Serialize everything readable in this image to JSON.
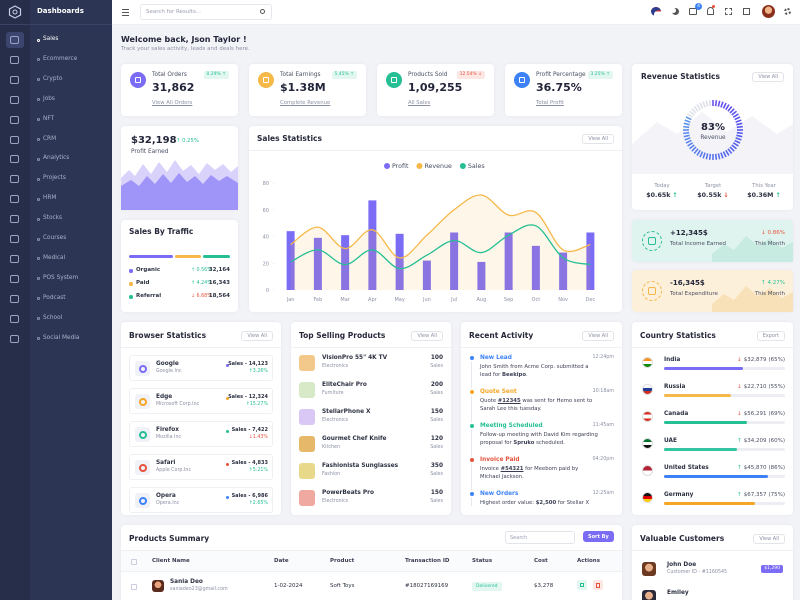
{
  "sidebar": {
    "brand": "Dashboards",
    "menu": [
      "Sales",
      "Ecommerce",
      "Crypto",
      "Jobs",
      "NFT",
      "CRM",
      "Analytics",
      "Projects",
      "HRM",
      "Stocks",
      "Courses",
      "Medical",
      "POS System",
      "Podcast",
      "School",
      "Social Media"
    ]
  },
  "header": {
    "search_placeholder": "Search for Results...",
    "cart_badge": "4"
  },
  "welcome": {
    "title": "Welcome back, Json Taylor !",
    "subtitle": "Track your sales activity, leads and deals here."
  },
  "stats": [
    {
      "label": "Total Orders",
      "value": "31,862",
      "change": "0.29% ↑",
      "trend": "up",
      "link": "View All Orders",
      "color": "#7b6cf6"
    },
    {
      "label": "Total Earnings",
      "value": "$1.38M",
      "change": "5.45% ↑",
      "trend": "up",
      "link": "Complete Revenue",
      "color": "#f5b849"
    },
    {
      "label": "Products Sold",
      "value": "1,09,255",
      "change": "12.54% ↓",
      "trend": "down",
      "link": "All Sales",
      "color": "#26bf94"
    },
    {
      "label": "Profit Percentage",
      "value": "36.75%",
      "change": "3.25% ↑",
      "trend": "up",
      "link": "Total Profit",
      "color": "#3c82f6"
    }
  ],
  "profit_card": {
    "value": "$32,198",
    "change": "↑ 0.25%",
    "label": "Profit Earned"
  },
  "traffic": {
    "title": "Sales By Traffic",
    "rows": [
      {
        "name": "Organic",
        "change": "↑ 0.56%",
        "trend": "up",
        "value": "32,164",
        "color": "#7b6cf6"
      },
      {
        "name": "Paid",
        "change": "↑ 4.24%",
        "trend": "up",
        "value": "16,343",
        "color": "#f5b849"
      },
      {
        "name": "Referral",
        "change": "↓ 6.68%",
        "trend": "down",
        "value": "18,564",
        "color": "#26bf94"
      }
    ]
  },
  "sales_statistics": {
    "title": "Sales Statistics",
    "button": "View All",
    "chart_data": {
      "type": "bar-line",
      "categories": [
        "Jan",
        "Feb",
        "Mar",
        "Apr",
        "May",
        "Jun",
        "Jul",
        "Aug",
        "Sep",
        "Oct",
        "Nov",
        "Dec"
      ],
      "series": [
        {
          "name": "Profit",
          "type": "bar",
          "color": "#7b6cf6",
          "values": [
            44,
            39,
            41,
            67,
            42,
            22,
            43,
            21,
            43,
            33,
            28,
            43
          ]
        },
        {
          "name": "Revenue",
          "type": "area",
          "color": "#f5b849",
          "values": [
            34,
            47,
            31,
            45,
            24,
            41,
            60,
            71,
            56,
            58,
            30,
            34
          ]
        },
        {
          "name": "Sales",
          "type": "line",
          "color": "#26bf94",
          "values": [
            21,
            30,
            19,
            30,
            16,
            26,
            37,
            28,
            41,
            48,
            24,
            19
          ]
        }
      ],
      "ylim": [
        0,
        80
      ],
      "yticks": [
        0,
        20,
        40,
        60,
        80
      ],
      "grid": false
    }
  },
  "revenue_statistics": {
    "title": "Revenue Statistics",
    "button": "View All",
    "gauge": {
      "value": 83,
      "value_label": "83%",
      "label": "Revenue"
    },
    "stats": [
      {
        "label": "Today",
        "value": "$0.65k",
        "arrow": "↑",
        "trend": "up"
      },
      {
        "label": "Target",
        "value": "$0.55k",
        "arrow": "↓",
        "trend": "down"
      },
      {
        "label": "This Year",
        "value": "$0.36M",
        "arrow": "↑",
        "trend": "up"
      }
    ]
  },
  "income": {
    "value": "+12,345$",
    "label": "Total Income Earned",
    "change": "↓ 0.86%",
    "trend": "down",
    "period": "This Month"
  },
  "expenditure": {
    "value": "-16,345$",
    "label": "Total Expenditure",
    "change": "↑ 4.27%",
    "trend": "up",
    "period": "This Month"
  },
  "browsers": {
    "title": "Browser Statistics",
    "button": "View All",
    "rows": [
      {
        "name": "Google",
        "company": "Google.Inc",
        "sales": "Sales - 14,123",
        "change": "↑3.26%",
        "trend": "up",
        "color": "#7b6cf6"
      },
      {
        "name": "Edge",
        "company": "Microsoft Corp.Inc",
        "sales": "Sales - 12,324",
        "change": "↑15.27%",
        "trend": "up",
        "color": "#f5a623"
      },
      {
        "name": "Firefox",
        "company": "Mozilla Inc",
        "sales": "Sales - 7,422",
        "change": "↓1.43%",
        "trend": "down",
        "color": "#26bf94"
      },
      {
        "name": "Safari",
        "company": "Apple Corp.Inc",
        "sales": "Sales - 4,833",
        "change": "↑5.21%",
        "trend": "up",
        "color": "#e6533c"
      },
      {
        "name": "Opera",
        "company": "Opera.Inc",
        "sales": "Sales - 6,986",
        "change": "↑2.65%",
        "trend": "up",
        "color": "#3c82f6"
      }
    ]
  },
  "top_products": {
    "title": "Top Selling Products",
    "button": "View All",
    "rows": [
      {
        "name": "VisionPro 55\" 4K TV",
        "category": "Electronics",
        "count": "100",
        "unit": "Sales",
        "color": "#f3c98b"
      },
      {
        "name": "EliteChair Pro",
        "category": "Furniture",
        "count": "200",
        "unit": "Sales",
        "color": "#d7e9c6"
      },
      {
        "name": "StellarPhone X",
        "category": "Electronics",
        "count": "150",
        "unit": "Sales",
        "color": "#d9c8f5"
      },
      {
        "name": "Gourmet Chef Knife",
        "category": "Kitchen",
        "count": "120",
        "unit": "Sales",
        "color": "#e6b86a"
      },
      {
        "name": "Fashionista Sunglasses",
        "category": "Fashion",
        "count": "350",
        "unit": "Sales",
        "color": "#e8d98a"
      },
      {
        "name": "PowerBeats Pro",
        "category": "Electronics",
        "count": "150",
        "unit": "Sales",
        "color": "#f0a9a0"
      }
    ]
  },
  "activity": {
    "title": "Recent Activity",
    "button": "View All",
    "items": [
      {
        "title": "New Lead",
        "time": "12:24pm",
        "before": "John Smith from Acme Corp. submitted a lead for ",
        "highlight": "Beekipo",
        "after": ".",
        "color": "#3c82f6"
      },
      {
        "title": "Quote Sent",
        "time": "10:18am",
        "before": "Quote ",
        "highlight": "#12345",
        "after": " was sent for Hemo sent to Sarah Lee this tuesday.",
        "color": "#f5a623"
      },
      {
        "title": "Meeting Scheduled",
        "time": "11:45am",
        "before": "Follow-up meeting with David Kim regarding proposal for ",
        "highlight": "Spruko",
        "after": " scheduled.",
        "color": "#26bf94"
      },
      {
        "title": "Invoice Paid",
        "time": "04:20pm",
        "before": "Invoice ",
        "highlight": "#54321",
        "after": " for Meebom paid by Michael Jackson.",
        "color": "#e6533c"
      },
      {
        "title": "New Orders",
        "time": "12:25am",
        "before": "Highest order value: ",
        "highlight": "$2,500",
        "after": " for Stellar X",
        "color": "#3c82f6"
      }
    ]
  },
  "countries": {
    "title": "Country Statistics",
    "button": "Export",
    "rows": [
      {
        "name": "India",
        "arrow": "↓",
        "trend": "down",
        "amount": "$32,879",
        "share": 65,
        "share_label": "(65%)",
        "color": "#7b6cf6"
      },
      {
        "name": "Russia",
        "arrow": "↓",
        "trend": "down",
        "amount": "$22,710",
        "share": 55,
        "share_label": "(55%)",
        "color": "#f5b849"
      },
      {
        "name": "Canada",
        "arrow": "↓",
        "trend": "down",
        "amount": "$56,291",
        "share": 69,
        "share_label": "(69%)",
        "color": "#26bf94"
      },
      {
        "name": "UAE",
        "arrow": "↑",
        "trend": "up",
        "amount": "$34,209",
        "share": 60,
        "share_label": "(60%)",
        "color": "#32c5a0"
      },
      {
        "name": "United States",
        "arrow": "↑",
        "trend": "up",
        "amount": "$45,870",
        "share": 86,
        "share_label": "(86%)",
        "color": "#3c82f6"
      },
      {
        "name": "Germany",
        "arrow": "↑",
        "trend": "up",
        "amount": "$67,357",
        "share": 75,
        "share_label": "(75%)",
        "color": "#f5a623"
      }
    ]
  },
  "products_summary": {
    "title": "Products Summary",
    "search_placeholder": "Search",
    "button": "Sort By",
    "columns": [
      "Client Name",
      "Date",
      "Product",
      "Transaction ID",
      "Status",
      "Cost",
      "Actions"
    ],
    "rows": [
      {
        "name": "Sania Deo",
        "email": "saniadeo23@gmail.com",
        "date": "1-02-2024",
        "product": "Soft Toys",
        "transaction": "#18027169169",
        "status": "Delivered",
        "cost": "$3,278"
      }
    ]
  },
  "customers": {
    "title": "Valuable Customers",
    "button": "View All",
    "rows": [
      {
        "name": "John Doe",
        "id": "Customer ID - #1160545",
        "amount": "$1,290"
      },
      {
        "name": "Emiley"
      }
    ]
  }
}
